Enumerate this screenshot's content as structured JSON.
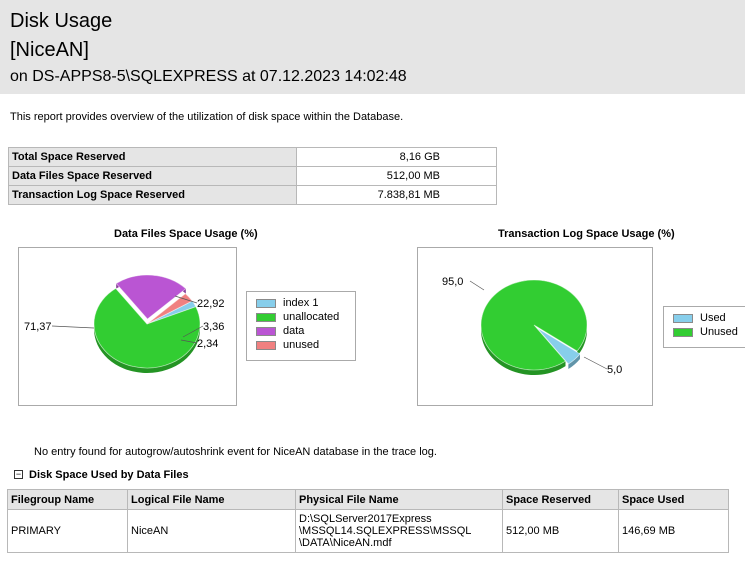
{
  "header": {
    "title": "Disk Usage",
    "database": "[NiceAN]",
    "server_line": "on DS-APPS8-5\\SQLEXPRESS at 07.12.2023 14:02:48"
  },
  "intro": "This report provides overview of the utilization of disk space within the Database.",
  "summary": [
    {
      "label": "Total Space Reserved",
      "value": "8,16 GB"
    },
    {
      "label": "Data Files Space Reserved",
      "value": "512,00 MB"
    },
    {
      "label": "Transaction Log Space Reserved",
      "value": "7.838,81 MB"
    }
  ],
  "chart_data": [
    {
      "type": "pie",
      "title": "Data Files Space Usage (%)",
      "categories": [
        "index 1",
        "unallocated",
        "data",
        "unused"
      ],
      "values": [
        2.34,
        71.37,
        22.92,
        3.36
      ],
      "labels": [
        "2,34",
        "71,37",
        "22,92",
        "3,36"
      ],
      "colors": [
        "#87ceeb",
        "#32cd32",
        "#ba55d3",
        "#f08080"
      ],
      "legend_position": "right"
    },
    {
      "type": "pie",
      "title": "Transaction Log Space Usage (%)",
      "categories": [
        "Used",
        "Unused"
      ],
      "values": [
        5.0,
        95.0
      ],
      "labels": [
        "5,0",
        "95,0"
      ],
      "colors": [
        "#87ceeb",
        "#32cd32"
      ],
      "legend_position": "right"
    }
  ],
  "autogrow_note": "No entry found for autogrow/autoshrink event for NiceAN database in the trace log.",
  "section": {
    "toggle": "−",
    "title": "Disk Space Used by Data Files"
  },
  "files_table": {
    "columns": [
      "Filegroup Name",
      "Logical File Name",
      "Physical File Name",
      "Space Reserved",
      "Space Used"
    ],
    "rows": [
      {
        "filegroup": "PRIMARY",
        "logical": "NiceAN",
        "physical_lines": [
          "D:\\SQLServer2017Express",
          "\\MSSQL14.SQLEXPRESS\\MSSQL",
          "\\DATA\\NiceAN.mdf"
        ],
        "reserved": "512,00 MB",
        "used": "146,69 MB"
      }
    ]
  }
}
